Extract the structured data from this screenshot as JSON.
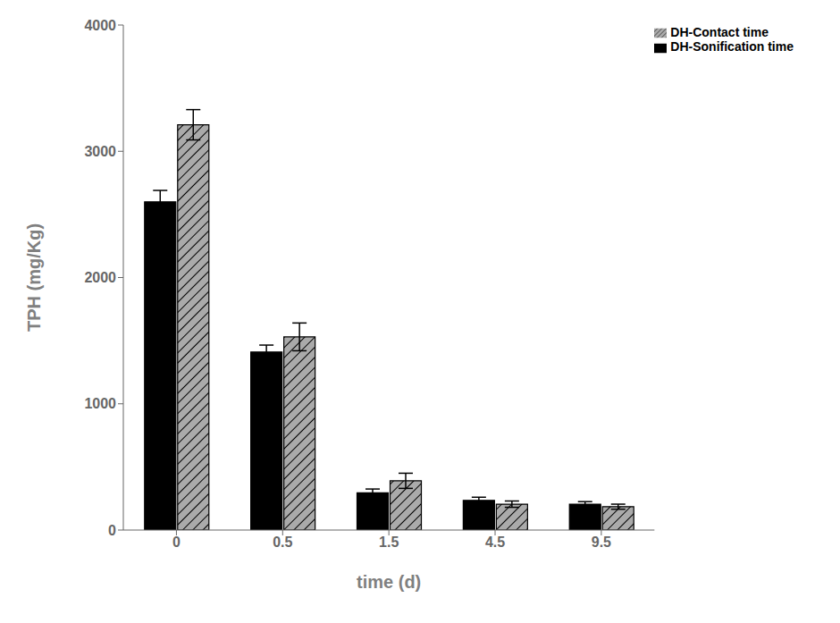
{
  "chart_data": {
    "type": "bar",
    "xlabel": "time (d)",
    "ylabel": "TPH (mg/Kg)",
    "categories": [
      "0",
      "0.5",
      "1.5",
      "4.5",
      "9.5"
    ],
    "series": [
      {
        "name": "DH-Sonification time",
        "color": "#000000",
        "values": [
          2600,
          1410,
          295,
          235,
          205
        ],
        "errors": [
          90,
          55,
          30,
          25,
          20
        ]
      },
      {
        "name": "DH-Contact time",
        "color": "#aaaaaa",
        "values": [
          3210,
          1530,
          390,
          205,
          185
        ],
        "errors": [
          120,
          110,
          60,
          25,
          20
        ]
      }
    ],
    "ylim": [
      0,
      4000
    ],
    "yticks": [
      0,
      1000,
      2000,
      3000,
      4000
    ],
    "grid": false,
    "legend": "upper right"
  }
}
